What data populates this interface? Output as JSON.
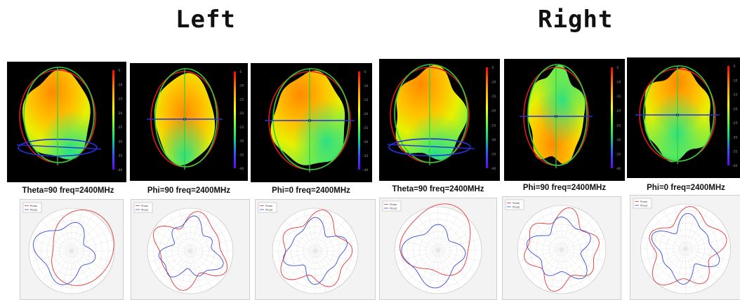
{
  "headings": {
    "left": "Left",
    "right": "Right"
  },
  "colorbar_ticks": [
    "-5",
    "-10",
    "-15",
    "-20",
    "-25",
    "-30",
    "-35",
    "-40"
  ],
  "legend": [
    "Ptotal",
    "Pbsgt"
  ],
  "panels": [
    {
      "id": "left-theta90",
      "side": "left",
      "caption": "Theta=90 freq=2400MHz"
    },
    {
      "id": "left-phi90",
      "side": "left",
      "caption": "Phi=90 freq=2400MHz"
    },
    {
      "id": "left-phi0",
      "side": "left",
      "caption": "Phi=0 freq=2400MHz"
    },
    {
      "id": "right-theta90",
      "side": "right",
      "caption": "Theta=90 freq=2400MHz"
    },
    {
      "id": "right-phi90",
      "side": "right",
      "caption": "Phi=90 freq=2400MHz"
    },
    {
      "id": "right-phi0",
      "side": "right",
      "caption": "Phi=0 freq=2400MHz"
    }
  ]
}
